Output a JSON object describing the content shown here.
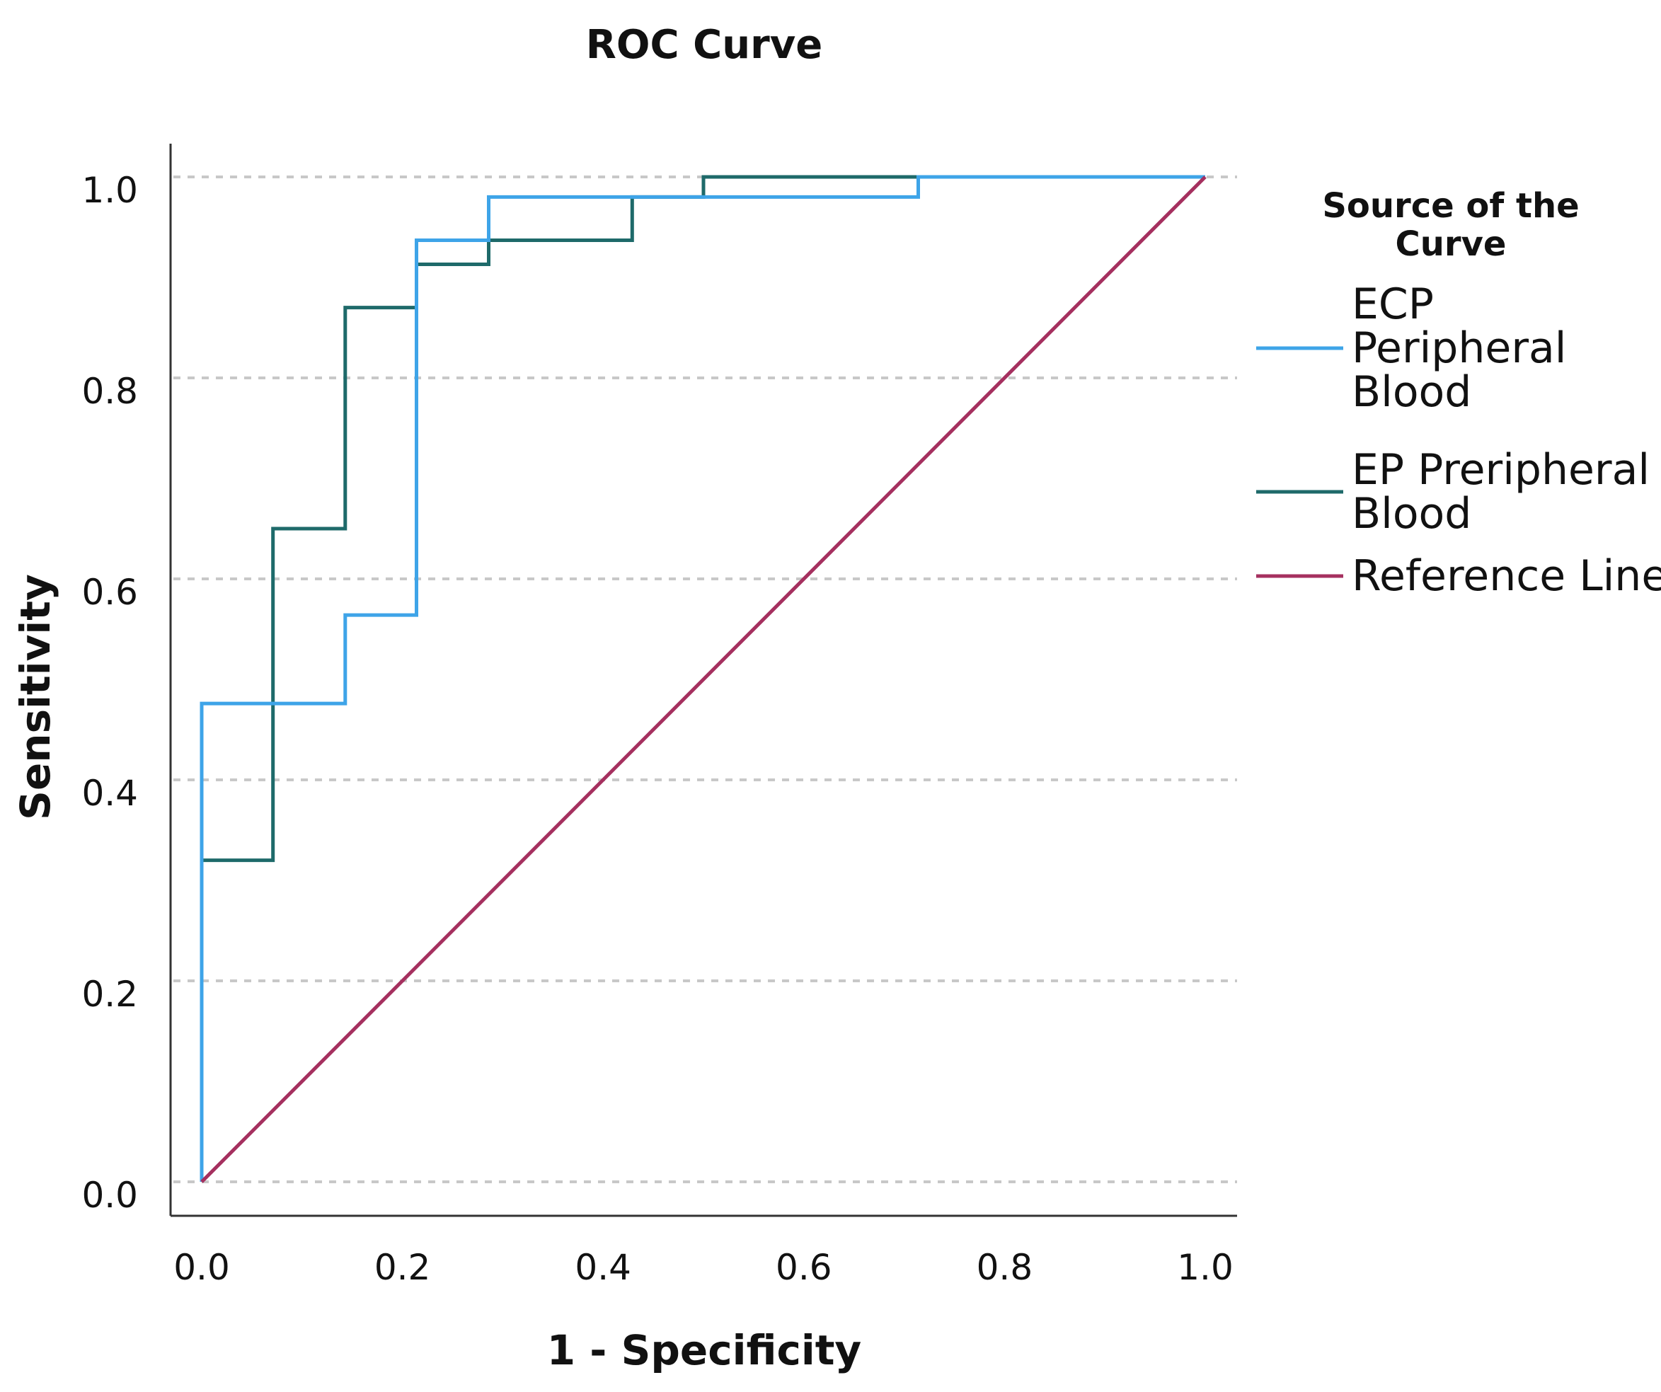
{
  "chart_data": {
    "type": "line",
    "title": "ROC Curve",
    "xlabel": "1 - Specificity",
    "ylabel": "Sensitivity",
    "xlim": [
      0,
      1
    ],
    "ylim": [
      0,
      1
    ],
    "grid": "horizontal dashed",
    "x_ticks": [
      "0.0",
      "0.2",
      "0.4",
      "0.6",
      "0.8",
      "1.0"
    ],
    "y_ticks": [
      "0.0",
      "0.2",
      "0.4",
      "0.6",
      "0.8",
      "1.0"
    ],
    "legend": {
      "title_lines": [
        "Source of the",
        "Curve"
      ],
      "placement": "right"
    },
    "series": [
      {
        "name": "ECP Peripheral Blood",
        "label_lines": [
          "ECP",
          "Peripheral",
          "Blood"
        ],
        "color": "#3ea4e8",
        "x": [
          0,
          0,
          0.143,
          0.143,
          0.214,
          0.214,
          0.286,
          0.286,
          0.714,
          0.714,
          1.0
        ],
        "y": [
          0,
          0.476,
          0.476,
          0.564,
          0.564,
          0.937,
          0.937,
          0.98,
          0.98,
          1.0,
          1.0
        ]
      },
      {
        "name": "EP Preripheral Blood",
        "label_lines": [
          "EP Preripheral",
          "Blood"
        ],
        "color": "#1e6a6a",
        "x": [
          0,
          0,
          0.071,
          0.071,
          0.143,
          0.143,
          0.214,
          0.214,
          0.286,
          0.286,
          0.429,
          0.429,
          0.5,
          0.5,
          1.0
        ],
        "y": [
          0,
          0.32,
          0.32,
          0.65,
          0.65,
          0.87,
          0.87,
          0.913,
          0.913,
          0.937,
          0.937,
          0.98,
          0.98,
          1.0,
          1.0
        ]
      },
      {
        "name": "Reference Line",
        "label_lines": [
          "Reference Line"
        ],
        "color": "#a5305f",
        "x": [
          0,
          1
        ],
        "y": [
          0,
          1
        ]
      }
    ]
  }
}
